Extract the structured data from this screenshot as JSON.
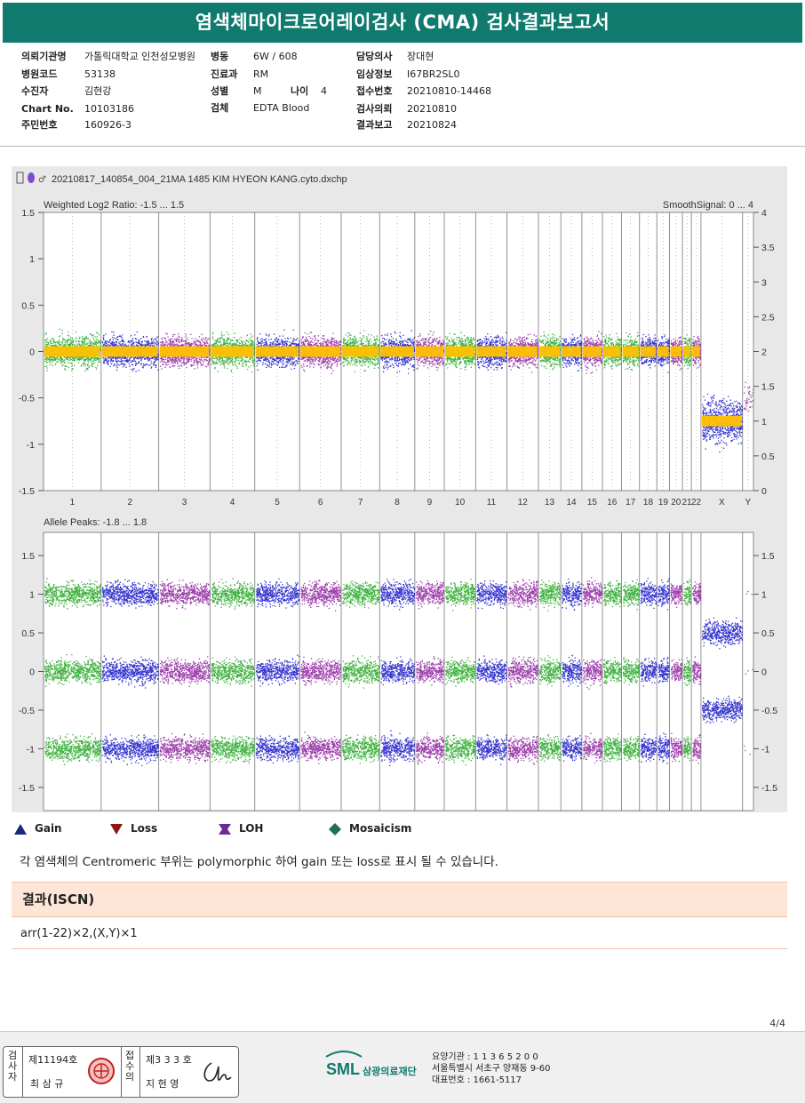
{
  "header": {
    "title": "염색체마이크로어레이검사 (CMA) 검사결과보고서"
  },
  "info": {
    "col1": [
      {
        "k": "의뢰기관명",
        "v": "가톨릭대학교 인천성모병원"
      },
      {
        "k": "병원코드",
        "v": "53138"
      },
      {
        "k": "수진자",
        "v": "김현강"
      },
      {
        "k": "Chart No.",
        "v": "10103186"
      },
      {
        "k": "주민번호",
        "v": "160926-3"
      }
    ],
    "col2": [
      {
        "k": "병동",
        "v": "6W / 608"
      },
      {
        "k": "진료과",
        "v": "RM"
      },
      {
        "k": "성별",
        "v": "M"
      },
      {
        "k": "검체",
        "v": "EDTA Blood"
      }
    ],
    "age": {
      "k": "나이",
      "v": "4"
    },
    "col3": [
      {
        "k": "담당의사",
        "v": "장대현"
      },
      {
        "k": "임상정보",
        "v": "I67BR2SL0"
      },
      {
        "k": "접수번호",
        "v": "20210810-14468"
      },
      {
        "k": "검사의뢰",
        "v": "20210810"
      },
      {
        "k": "결과보고",
        "v": "20210824"
      }
    ]
  },
  "chart_header": {
    "filename": "20210817_140854_004_21MA 1485 KIM HYEON KANG.cyto.dxchp"
  },
  "chart_data": [
    {
      "type": "scatter",
      "title": "Weighted Log2 Ratio: -1.5 ... 1.5",
      "right_title": "SmoothSignal: 0 ... 4",
      "ylim": [
        -1.5,
        1.5
      ],
      "ylim_right": [
        0,
        4
      ],
      "yticks_left": [
        "1.5",
        "1",
        "0.5",
        "0",
        "-0.5",
        "-1",
        "-1.5"
      ],
      "yticks_right": [
        "4",
        "3.5",
        "3",
        "2.5",
        "2",
        "1.5",
        "1",
        "0.5",
        "0"
      ],
      "categories": [
        "1",
        "2",
        "3",
        "4",
        "5",
        "6",
        "7",
        "8",
        "9",
        "10",
        "11",
        "12",
        "13",
        "14",
        "15",
        "16",
        "17",
        "18",
        "19",
        "20",
        "21",
        "22",
        "X",
        "Y"
      ],
      "series": [
        {
          "name": "SmoothSignal",
          "values_autosome": 2,
          "values_X": 1
        }
      ]
    },
    {
      "type": "scatter",
      "title": "Allele Peaks: -1.8 ... 1.8",
      "ylim": [
        -1.8,
        1.8
      ],
      "yticks_left": [
        "1.5",
        "1",
        "0.5",
        "0",
        "-0.5",
        "-1",
        "-1.5"
      ],
      "yticks_right": [
        "1.5",
        "1",
        "0.5",
        "0",
        "-0.5",
        "-1",
        "-1.5"
      ],
      "categories": [
        "1",
        "2",
        "3",
        "4",
        "5",
        "6",
        "7",
        "8",
        "9",
        "10",
        "11",
        "12",
        "13",
        "14",
        "15",
        "16",
        "17",
        "18",
        "19",
        "20",
        "21",
        "22",
        "X",
        "Y"
      ],
      "peaks_autosome": [
        1,
        0,
        -1
      ],
      "peaks_X": [
        0.5,
        -0.5
      ]
    }
  ],
  "colors": {
    "green": "#1fa51f",
    "blue": "#1414c8",
    "purple": "#8c1e9c",
    "yellow": "#ffc000",
    "teal": "#0f7a6d"
  },
  "legend": {
    "items": [
      {
        "icon": "gain-triangle-icon",
        "label": "Gain"
      },
      {
        "icon": "loss-triangle-icon",
        "label": "Loss"
      },
      {
        "icon": "loh-icon",
        "label": "LOH"
      },
      {
        "icon": "mosaicism-diamond-icon",
        "label": "Mosaicism"
      }
    ]
  },
  "note": "각 염색체의 Centromeric 부위는 polymorphic 하여 gain 또는 loss로 표시 될 수 있습니다.",
  "result": {
    "heading": "결과(ISCN)",
    "value": "arr(1-22)×2,(X,Y)×1"
  },
  "page": "4/4",
  "footer": {
    "label_a": "검사자",
    "reg_a": "제11194호",
    "name_a": "최 삼 규",
    "label_b": "접수의",
    "reg_b": "제3 3 3 호",
    "name_b": "지 현 영",
    "logo": "SML",
    "org": "삼광의료재단",
    "addr": [
      "요양기관 : 1 1 3 6 5 2 0 0",
      "서울특별시 서초구 양재동 9-60",
      "대표번호 : 1661-5117"
    ]
  }
}
